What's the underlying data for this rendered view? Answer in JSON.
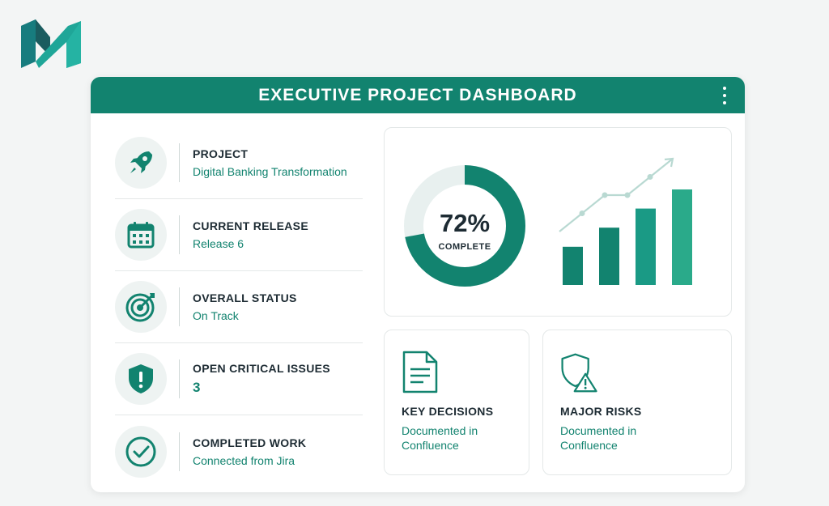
{
  "header": {
    "title": "EXECUTIVE PROJECT DASHBOARD"
  },
  "icons": {
    "logo": "brand-logo",
    "menu": "vertical-dots-icon",
    "project": "rocket-icon",
    "release": "calendar-icon",
    "status": "target-icon",
    "issues": "shield-alert-icon",
    "work": "check-circle-icon",
    "decisions": "document-icon",
    "risks": "shield-warning-icon"
  },
  "summary": {
    "items": [
      {
        "label": "PROJECT",
        "value": "Digital Banking Transformation"
      },
      {
        "label": "CURRENT RELEASE",
        "value": "Release 6"
      },
      {
        "label": "OVERALL STATUS",
        "value": "On Track"
      },
      {
        "label": "OPEN CRITICAL ISSUES",
        "value": "3"
      },
      {
        "label": "COMPLETED WORK",
        "value": "Connected from Jira"
      }
    ]
  },
  "progress": {
    "percent_text": "72%",
    "label": "COMPLETE",
    "fraction": 0.72
  },
  "chart_data": {
    "type": "bar",
    "categories": [
      "",
      "",
      "",
      ""
    ],
    "values": [
      2,
      3,
      4,
      5
    ],
    "trend": [
      1,
      2,
      3,
      3,
      4,
      5
    ],
    "title": "",
    "xlabel": "",
    "ylabel": ""
  },
  "cards": {
    "decisions": {
      "title": "KEY DECISIONS",
      "subtitle": "Documented in Confluence"
    },
    "risks": {
      "title": "MAJOR RISKS",
      "subtitle": "Documented in Confluence"
    }
  },
  "colors": {
    "primary": "#12836f",
    "secondary": "#1a9a85",
    "accent": "#2aaa8a",
    "track": "#e8f0ef",
    "text_dark": "#1d2b33"
  }
}
